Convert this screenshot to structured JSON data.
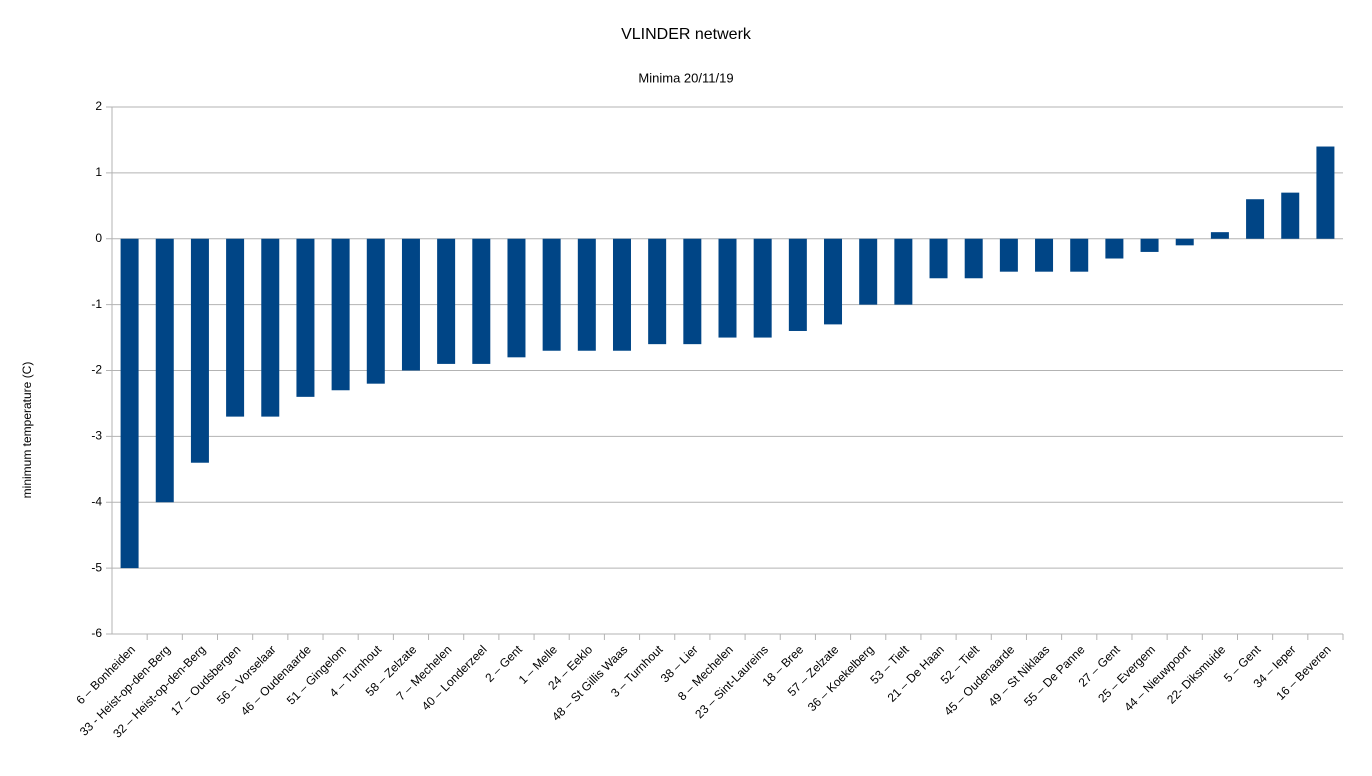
{
  "chart_data": {
    "type": "bar",
    "title": "VLINDER netwerk",
    "subtitle": "Minima 20/11/19",
    "y_label": "minimum temperature (C)",
    "categories": [
      "6 – Bonheiden",
      "33 - Heist-op-den-Berg",
      "32 – Heist-op-den-Berg",
      "17 – Oudsbergen",
      "56 – Vorselaar",
      "46 – Oudenaarde",
      "51 – Gingelom",
      "4 – Turnhout",
      "58 – Zelzate",
      "7 – Mechelen",
      "40 – Londerzeel",
      "2 – Gent",
      "1 – Melle",
      "24 – Eeklo",
      "48 – St Gillis Waas",
      "3 – Turnhout",
      "38 – Lier",
      "8 – Mechelen",
      "23 – Sint-Laureins",
      "18 – Bree",
      "57 – Zelzate",
      "36 – Koekelberg",
      "53 – Tielt",
      "21 – De Haan",
      "52 – Tielt",
      "45 – Oudenaarde",
      "49 – St Niklaas",
      "55 – De Panne",
      "27 – Gent",
      "25 – Evergem",
      "44 – Nieuwpoort",
      "22- Diksmuide",
      "5 – Gent",
      "34 – Ieper",
      "16 – Beveren"
    ],
    "values": [
      -5,
      -4,
      -3.4,
      -2.7,
      -2.7,
      -2.4,
      -2.3,
      -2.2,
      -2.0,
      -1.9,
      -1.9,
      -1.8,
      -1.7,
      -1.7,
      -1.7,
      -1.6,
      -1.6,
      -1.5,
      -1.5,
      -1.4,
      -1.3,
      -1.0,
      -1.0,
      -0.6,
      -0.6,
      -0.5,
      -0.5,
      -0.5,
      -0.3,
      -0.2,
      -0.1,
      0.1,
      0.6,
      0.7,
      1.4
    ],
    "color": "#004586",
    "ylim": [
      -6,
      2
    ],
    "yticks": [
      -6,
      -5,
      -4,
      -3,
      -2,
      -1,
      0,
      1,
      2
    ],
    "grid": true
  }
}
